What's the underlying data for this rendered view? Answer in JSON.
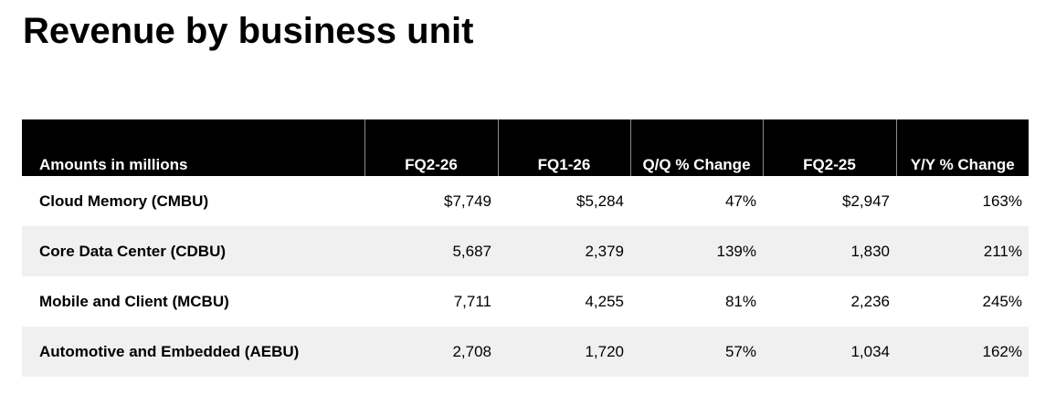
{
  "title": "Revenue by business unit",
  "table": {
    "headers": [
      "Amounts in millions",
      "FQ2-26",
      "FQ1-26",
      "Q/Q % Change",
      "FQ2-25",
      "Y/Y % Change"
    ],
    "rows": [
      [
        "Cloud Memory (CMBU)",
        "$7,749",
        "$5,284",
        "47%",
        "$2,947",
        "163%"
      ],
      [
        "Core Data Center (CDBU)",
        "5,687",
        "2,379",
        "139%",
        "1,830",
        "211%"
      ],
      [
        "Mobile and Client (MCBU)",
        "7,711",
        "4,255",
        "81%",
        "2,236",
        "245%"
      ],
      [
        "Automotive and Embedded (AEBU)",
        "2,708",
        "1,720",
        "57%",
        "1,034",
        "162%"
      ]
    ]
  }
}
